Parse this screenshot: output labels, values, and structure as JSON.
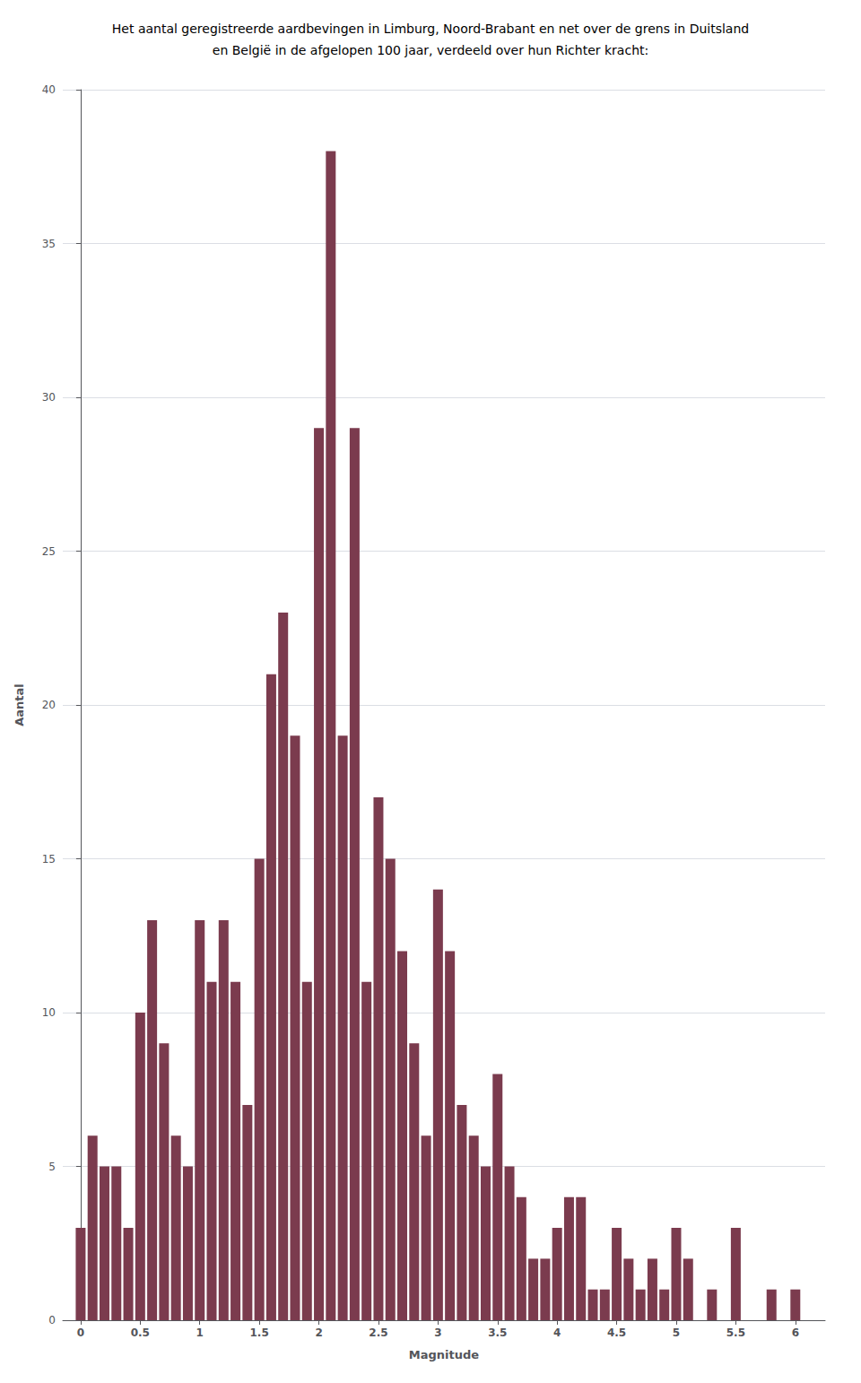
{
  "chart_data": {
    "type": "bar",
    "title": "Het aantal geregistreerde aardbevingen in Limburg, Noord-Brabant en net over de grens in Duitsland",
    "subtitle": "en België in de afgelopen 100 jaar, verdeeld over hun Richter kracht:",
    "xlabel": "Magnitude",
    "ylabel": "Aantal",
    "x": [
      0.0,
      0.1,
      0.2,
      0.3,
      0.4,
      0.5,
      0.6,
      0.7,
      0.8,
      0.9,
      1.0,
      1.1,
      1.2,
      1.3,
      1.4,
      1.5,
      1.6,
      1.7,
      1.8,
      1.9,
      2.0,
      2.1,
      2.2,
      2.3,
      2.4,
      2.5,
      2.6,
      2.7,
      2.8,
      2.9,
      3.0,
      3.1,
      3.2,
      3.3,
      3.4,
      3.5,
      3.6,
      3.7,
      3.8,
      3.9,
      4.0,
      4.1,
      4.2,
      4.3,
      4.4,
      4.5,
      4.6,
      4.7,
      4.8,
      4.9,
      5.0,
      5.1,
      5.2,
      5.3,
      5.4,
      5.5,
      5.6,
      5.7,
      5.8,
      5.9,
      6.0
    ],
    "values": [
      3,
      6,
      5,
      5,
      3,
      10,
      13,
      9,
      6,
      5,
      13,
      11,
      13,
      11,
      7,
      15,
      21,
      23,
      19,
      11,
      29,
      38,
      19,
      29,
      11,
      17,
      15,
      12,
      9,
      6,
      14,
      12,
      7,
      6,
      5,
      8,
      5,
      4,
      2,
      2,
      3,
      4,
      4,
      1,
      1,
      3,
      2,
      1,
      2,
      1,
      3,
      2,
      0,
      1,
      0,
      3,
      0,
      0,
      1,
      0,
      1
    ],
    "color": "#7B3B4E",
    "xlim": [
      -0.15,
      6.25
    ],
    "xticks": [
      0,
      0.5,
      1,
      1.5,
      2,
      2.5,
      3,
      3.5,
      4,
      4.5,
      5,
      5.5,
      6
    ],
    "ylim": [
      0,
      40
    ],
    "yticks": [
      0,
      5,
      10,
      15,
      20,
      25,
      30,
      35,
      40
    ],
    "grid": true
  }
}
